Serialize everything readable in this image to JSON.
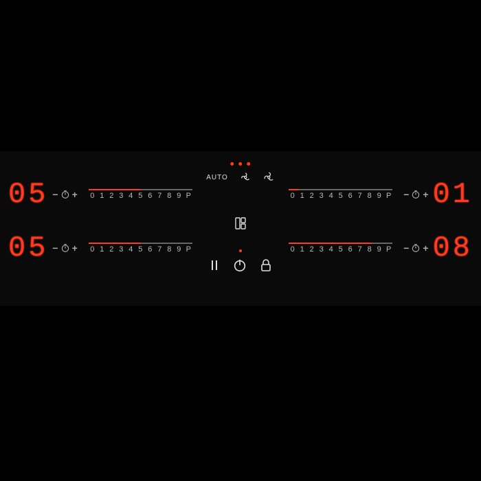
{
  "colors": {
    "accent": "#ff3b1f",
    "dim": "#888888",
    "label": "#bbbbbb",
    "icon": "#dddddd",
    "bg": "#0a0a0a"
  },
  "scale_labels": [
    "0",
    "1",
    "2",
    "3",
    "4",
    "5",
    "6",
    "7",
    "8",
    "9",
    "P"
  ],
  "center": {
    "auto_label": "AUTO",
    "dots": [
      "#ff3b1f",
      "#ff3b1f",
      "#ff3b1f"
    ]
  },
  "zones": {
    "z1": {
      "display": "05",
      "level": 5,
      "side": "left"
    },
    "z2": {
      "display": "05",
      "level": 5,
      "side": "left"
    },
    "z3": {
      "display": "01",
      "level": 1,
      "side": "right"
    },
    "z4": {
      "display": "08",
      "level": 8,
      "side": "right"
    }
  }
}
